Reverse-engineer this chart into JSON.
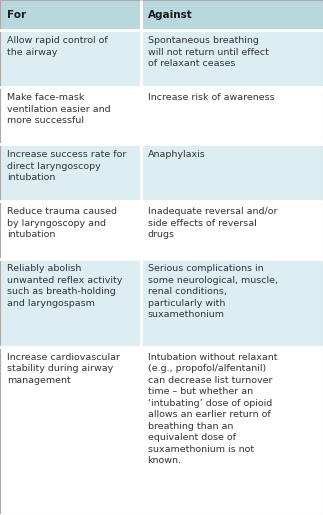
{
  "header": [
    "For",
    "Against"
  ],
  "rows": [
    [
      "Allow rapid control of\nthe airway",
      "Spontaneous breathing\nwill not return until effect\nof relaxant ceases"
    ],
    [
      "Make face-mask\nventilation easier and\nmore successful",
      "Increase risk of awareness"
    ],
    [
      "Increase success rate for\ndirect laryngoscopy\nintubation",
      "Anaphylaxis"
    ],
    [
      "Reduce trauma caused\nby laryngoscopy and\nintubation",
      "Inadequate reversal and/or\nside effects of reversal\ndrugs"
    ],
    [
      "Reliably abolish\nunwanted reflex activity\nsuch as breath-holding\nand laryngospasm",
      "Serious complications in\nsome neurological, muscle,\nrenal conditions,\nparticularly with\nsuxamethonium"
    ],
    [
      "Increase cardiovascular\nstability during airway\nmanagement",
      "Intubation without relaxant\n(e.g., propofol/alfentanil)\ncan decrease list turnover\ntime – but whether an\n‘intubating’ dose of opioid\nallows an earlier return of\nbreathing than an\nequivalent dose of\nsuxamethonium is not\nknown."
    ]
  ],
  "header_bg": "#b8d8de",
  "row_bg_odd": "#ddeef3",
  "row_bg_even": "#ffffff",
  "header_font_size": 7.5,
  "cell_font_size": 6.8,
  "col_split": 0.435,
  "fig_width": 3.23,
  "fig_height": 5.15,
  "dpi": 100
}
